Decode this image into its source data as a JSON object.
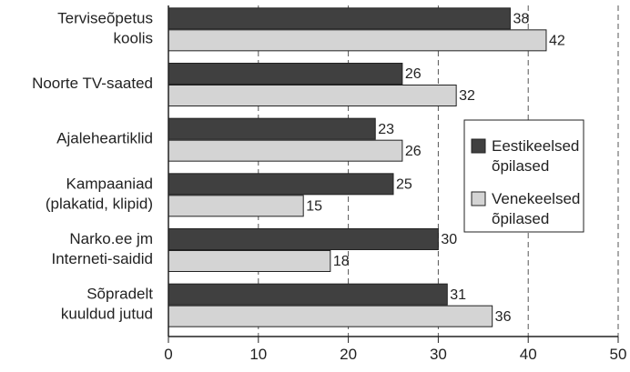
{
  "chart_data": {
    "type": "bar",
    "orientation": "horizontal",
    "categories": [
      [
        "Terviseõpetus",
        "koolis"
      ],
      [
        "Noorte TV-saated"
      ],
      [
        "Ajaleheartiklid"
      ],
      [
        "Kampaaniad",
        "(plakatid, klipid)"
      ],
      [
        "Narko.ee jm",
        "Interneti-saidid"
      ],
      [
        "Sõpradelt",
        "kuuldud jutud"
      ]
    ],
    "series": [
      {
        "name": [
          "Eestikeelsed",
          "õpilased"
        ],
        "color": "#404040",
        "values": [
          38,
          26,
          23,
          25,
          30,
          31
        ]
      },
      {
        "name": [
          "Venekeelsed",
          "õpilased"
        ],
        "color": "#d4d4d4",
        "values": [
          42,
          32,
          26,
          15,
          18,
          36
        ]
      }
    ],
    "xlim": [
      0,
      50
    ],
    "xticks": [
      0,
      10,
      20,
      30,
      40,
      50
    ],
    "tick_labels": [
      "0",
      "10",
      "20",
      "30",
      "40",
      "50"
    ],
    "grid": "vertical dashed",
    "legend_position": "right",
    "data_labels": true
  }
}
